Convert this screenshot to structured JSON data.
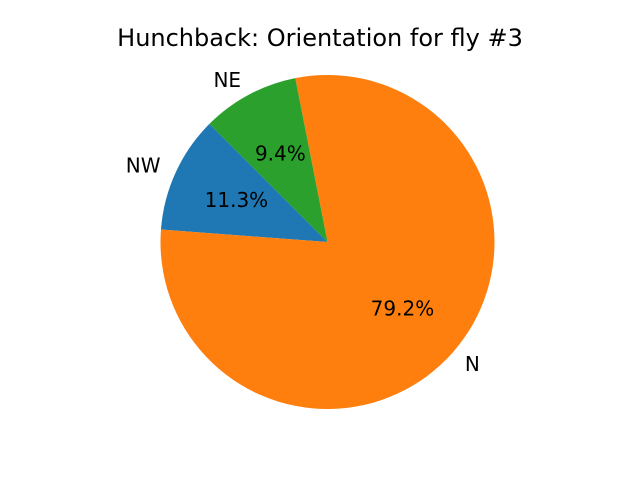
{
  "chart_data": {
    "type": "pie",
    "title": "Hunchback: Orientation for fly #3",
    "slices": [
      {
        "label": "NW",
        "value": 11.3,
        "pct_label": "11.3%",
        "color": "#1f77b4"
      },
      {
        "label": "N",
        "value": 79.2,
        "pct_label": "79.2%",
        "color": "#ff7f0e"
      },
      {
        "label": "NE",
        "value": 9.4,
        "pct_label": "9.4%",
        "color": "#2ca02c"
      }
    ],
    "legend": false
  }
}
